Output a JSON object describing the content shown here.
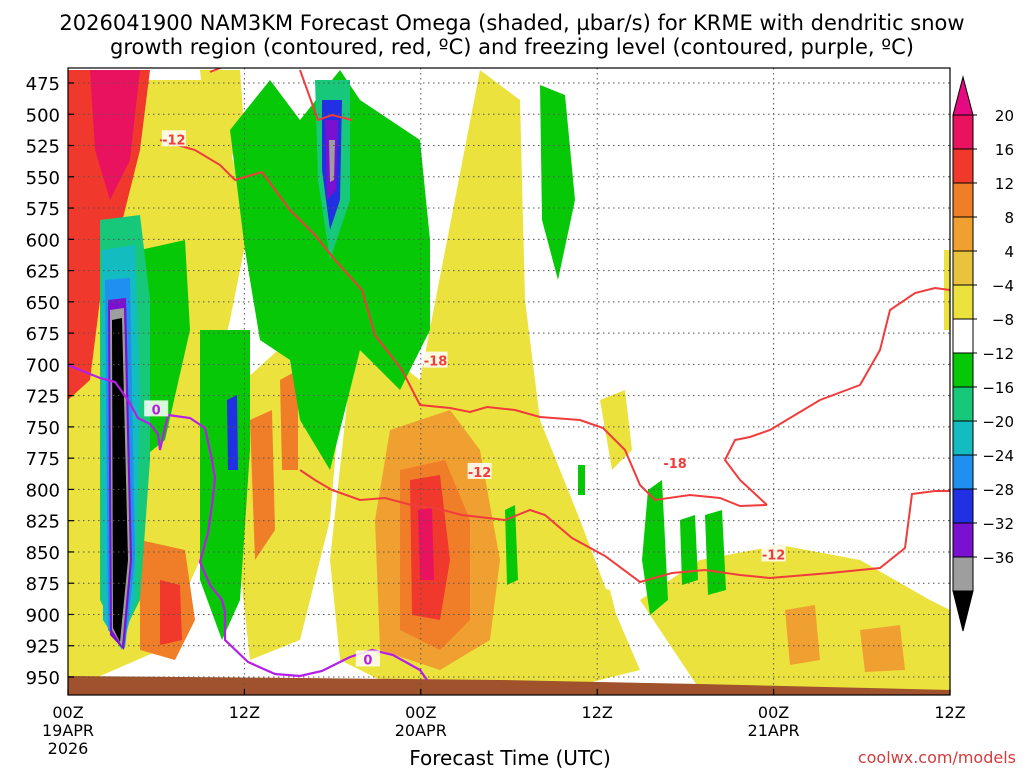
{
  "chart_data": {
    "type": "heatmap",
    "title_line1": "2026041900 NAM3KM Forecast Omega (shaded, µbar/s) for KRME with dendritic snow",
    "title_line2": "growth region (contoured, red, ºC) and freezing level (contoured, purple, ºC)",
    "xlabel": "Forecast Time (UTC)",
    "credit": "coolwx.com/models",
    "x_range_hours": [
      0,
      60
    ],
    "x_ticks": [
      {
        "hour": 0,
        "line1": "00Z",
        "line2": "19APR",
        "line3": "2026"
      },
      {
        "hour": 12,
        "line1": "12Z",
        "line2": "",
        "line3": ""
      },
      {
        "hour": 24,
        "line1": "00Z",
        "line2": "20APR",
        "line3": ""
      },
      {
        "hour": 36,
        "line1": "12Z",
        "line2": "",
        "line3": ""
      },
      {
        "hour": 48,
        "line1": "00Z",
        "line2": "21APR",
        "line3": ""
      },
      {
        "hour": 60,
        "line1": "12Z",
        "line2": "",
        "line3": ""
      }
    ],
    "y_range_hpa": [
      465,
      955
    ],
    "y_ticks": [
      475,
      500,
      525,
      550,
      575,
      600,
      625,
      650,
      675,
      700,
      725,
      750,
      775,
      800,
      825,
      850,
      875,
      900,
      925,
      950
    ],
    "colorbar": {
      "labels": [
        "20",
        "16",
        "12",
        "8",
        "4",
        "−4",
        "−8",
        "−12",
        "−16",
        "−20",
        "−24",
        "−28",
        "−32",
        "−36"
      ],
      "colors": [
        "#e8125f",
        "#f0392c",
        "#f07e28",
        "#f0a030",
        "#e9c23e",
        "#ece23e",
        "#ffffff",
        "#06c806",
        "#18c87a",
        "#12bcc0",
        "#1f8ff0",
        "#2230e4",
        "#7a10d0",
        "#9e9e9e"
      ],
      "top_arrow_color": "#e60a82",
      "bottom_arrow_color": "#000000"
    },
    "contour_labels": [
      {
        "text": "-12",
        "hour": 7.2,
        "hpa": 520,
        "color": "#f03c3c"
      },
      {
        "text": "-18",
        "hour": 25.0,
        "hpa": 697,
        "color": "#f03c3c"
      },
      {
        "text": "-12",
        "hour": 28.0,
        "hpa": 786,
        "color": "#f03c3c"
      },
      {
        "text": "-18",
        "hour": 41.3,
        "hpa": 779,
        "color": "#f03c3c"
      },
      {
        "text": "-12",
        "hour": 48.0,
        "hpa": 852,
        "color": "#f03c3c"
      },
      {
        "text": "0",
        "hour": 6.0,
        "hpa": 736,
        "color": "#b41ee6"
      },
      {
        "text": "0",
        "hour": 20.4,
        "hpa": 936,
        "color": "#b41ee6"
      }
    ]
  }
}
